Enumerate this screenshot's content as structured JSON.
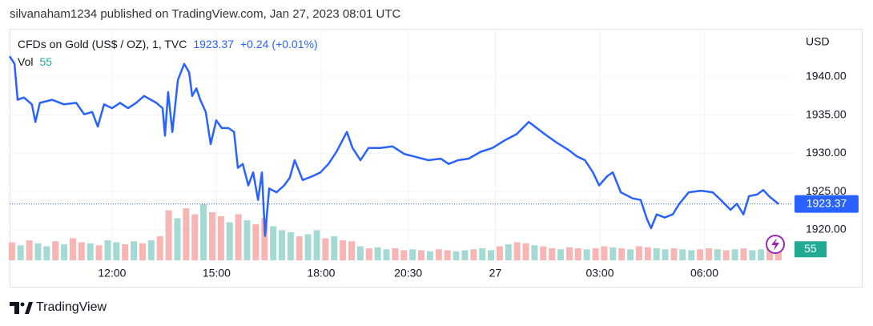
{
  "header": {
    "published": "silvanaham1234 published on TradingView.com, Jan 27, 2023 08:01 UTC"
  },
  "chart_data": {
    "type": "line",
    "symbol": "CFDs on Gold (US$ / OZ), 1, TVC",
    "last": 1923.37,
    "change": "+0.24",
    "change_pct": "(+0.01%)",
    "currency": "USD",
    "x": [
      9.06,
      9.2,
      9.29,
      9.47,
      9.7,
      9.8,
      9.93,
      10.28,
      10.62,
      10.97,
      11.2,
      11.43,
      11.59,
      11.77,
      12.0,
      12.23,
      12.46,
      12.69,
      12.92,
      13.27,
      13.45,
      13.52,
      13.61,
      13.73,
      13.89,
      14.07,
      14.21,
      14.3,
      14.42,
      14.53,
      14.69,
      14.83,
      14.99,
      15.15,
      15.34,
      15.5,
      15.61,
      15.75,
      15.91,
      16.05,
      16.19,
      16.3,
      16.39,
      16.51,
      16.72,
      16.94,
      17.1,
      17.24,
      17.47,
      17.75,
      17.98,
      18.21,
      18.44,
      18.74,
      18.9,
      19.13,
      19.36,
      19.7,
      20.05,
      20.39,
      20.74,
      21.08,
      21.43,
      21.66,
      21.93,
      22.23,
      22.58,
      22.92,
      23.27,
      23.61,
      23.96,
      24.19,
      24.42,
      24.76,
      25.11,
      25.34,
      25.57,
      25.8,
      25.98,
      26.21,
      26.37,
      26.6,
      26.94,
      27.17,
      27.36,
      27.47,
      27.63,
      27.86,
      28.09,
      28.28,
      28.55,
      28.9,
      29.24,
      29.47,
      29.75,
      29.93,
      30.12,
      30.28,
      30.51,
      30.69,
      30.85,
      31.04,
      31.13
    ],
    "series": [
      {
        "color": "#2962ff",
        "values": [
          1942.7,
          1941.7,
          1937.0,
          1937.3,
          1936.4,
          1934.1,
          1936.6,
          1937.0,
          1936.4,
          1936.6,
          1935.1,
          1935.4,
          1933.5,
          1936.4,
          1935.9,
          1936.6,
          1935.9,
          1936.6,
          1937.5,
          1936.6,
          1935.9,
          1932.3,
          1938.0,
          1932.8,
          1939.6,
          1941.7,
          1940.6,
          1937.5,
          1938.5,
          1937.0,
          1935.4,
          1931.2,
          1934.3,
          1933.3,
          1933.3,
          1932.8,
          1928.1,
          1928.6,
          1925.8,
          1927.5,
          1923.9,
          1927.5,
          1919.2,
          1925.4,
          1924.9,
          1925.8,
          1926.8,
          1929.1,
          1926.5,
          1927.0,
          1927.5,
          1928.6,
          1930.2,
          1932.8,
          1930.7,
          1929.1,
          1930.7,
          1930.7,
          1930.9,
          1929.9,
          1929.5,
          1929.1,
          1929.3,
          1928.6,
          1929.1,
          1929.3,
          1930.2,
          1930.7,
          1931.7,
          1932.5,
          1934.1,
          1933.3,
          1932.5,
          1931.4,
          1930.4,
          1929.6,
          1929.1,
          1927.5,
          1925.8,
          1927.0,
          1927.5,
          1924.9,
          1924.1,
          1923.9,
          1921.3,
          1920.2,
          1922.0,
          1921.6,
          1922.0,
          1923.4,
          1924.9,
          1925.1,
          1924.9,
          1923.9,
          1922.6,
          1923.4,
          1922.0,
          1924.4,
          1924.6,
          1925.2,
          1924.4,
          1923.7,
          1923.37
        ]
      }
    ],
    "xlim": [
      9.06,
      31.54
    ],
    "xticks": [
      {
        "value": 12,
        "label": "12:00"
      },
      {
        "value": 15,
        "label": "15:00"
      },
      {
        "value": 18,
        "label": "18:00"
      },
      {
        "value": 20.5,
        "label": "20:30"
      },
      {
        "value": 23,
        "label": "27"
      },
      {
        "value": 26,
        "label": "03:00"
      },
      {
        "value": 29,
        "label": "06:00"
      }
    ],
    "ylim": [
      1916.0,
      1946.28
    ],
    "yticks": [
      {
        "value": 1920,
        "label": "1920.00"
      },
      {
        "value": 1925,
        "label": "1925.00"
      },
      {
        "value": 1930,
        "label": "1930.00"
      },
      {
        "value": 1935,
        "label": "1935.00"
      },
      {
        "value": 1940,
        "label": "1940.00"
      }
    ],
    "grid": true,
    "volume": {
      "name": "Vol",
      "last": 55,
      "ylim": [
        0,
        400
      ],
      "x": [
        9.125,
        9.375,
        9.625,
        9.875,
        10.125,
        10.375,
        10.625,
        10.875,
        11.125,
        11.375,
        11.625,
        11.875,
        12.125,
        12.375,
        12.625,
        12.875,
        13.125,
        13.375,
        13.625,
        13.875,
        14.125,
        14.375,
        14.625,
        14.875,
        15.125,
        15.375,
        15.625,
        15.875,
        16.125,
        16.375,
        16.625,
        16.875,
        17.125,
        17.375,
        17.625,
        17.875,
        18.125,
        18.375,
        18.625,
        18.875,
        19.125,
        19.375,
        19.625,
        19.875,
        20.125,
        20.375,
        20.625,
        20.875,
        21.125,
        21.375,
        21.625,
        21.875,
        22.125,
        22.375,
        22.625,
        22.875,
        23.125,
        23.375,
        23.625,
        23.875,
        24.125,
        24.375,
        24.625,
        24.875,
        25.125,
        25.375,
        25.625,
        25.875,
        26.125,
        26.375,
        26.625,
        26.875,
        27.125,
        27.375,
        27.625,
        27.875,
        28.125,
        28.375,
        28.625,
        28.875,
        29.125,
        29.375,
        29.625,
        29.875,
        30.125,
        30.375,
        30.625,
        30.875,
        31.125
      ],
      "values": [
        90,
        75,
        100,
        85,
        70,
        95,
        80,
        110,
        90,
        85,
        75,
        100,
        90,
        80,
        95,
        85,
        100,
        120,
        250,
        210,
        260,
        230,
        280,
        240,
        220,
        190,
        230,
        200,
        180,
        210,
        170,
        150,
        140,
        120,
        130,
        150,
        110,
        120,
        100,
        95,
        70,
        60,
        65,
        55,
        60,
        50,
        55,
        50,
        45,
        55,
        50,
        45,
        50,
        55,
        60,
        50,
        70,
        80,
        90,
        85,
        75,
        70,
        60,
        55,
        65,
        60,
        55,
        60,
        70,
        65,
        60,
        55,
        70,
        65,
        60,
        55,
        60,
        55,
        50,
        55,
        60,
        55,
        50,
        55,
        60,
        50,
        55,
        60,
        55
      ],
      "colors": [
        "#f5a3a0",
        "#8fd1c9",
        "#f5a3a0",
        "#8fd1c9",
        "#8fd1c9",
        "#f5a3a0",
        "#8fd1c9",
        "#f5a3a0",
        "#f5a3a0",
        "#8fd1c9",
        "#f5a3a0",
        "#8fd1c9",
        "#8fd1c9",
        "#f5a3a0",
        "#8fd1c9",
        "#f5a3a0",
        "#8fd1c9",
        "#f5a3a0",
        "#f5a3a0",
        "#8fd1c9",
        "#f5a3a0",
        "#f5a3a0",
        "#8fd1c9",
        "#f5a3a0",
        "#f5a3a0",
        "#8fd1c9",
        "#f5a3a0",
        "#8fd1c9",
        "#f5a3a0",
        "#f5a3a0",
        "#8fd1c9",
        "#8fd1c9",
        "#8fd1c9",
        "#f5a3a0",
        "#8fd1c9",
        "#8fd1c9",
        "#f5a3a0",
        "#8fd1c9",
        "#f5a3a0",
        "#f5a3a0",
        "#8fd1c9",
        "#f5a3a0",
        "#8fd1c9",
        "#8fd1c9",
        "#f5a3a0",
        "#f5a3a0",
        "#8fd1c9",
        "#f5a3a0",
        "#8fd1c9",
        "#f5a3a0",
        "#f5a3a0",
        "#8fd1c9",
        "#8fd1c9",
        "#f5a3a0",
        "#8fd1c9",
        "#8fd1c9",
        "#f5a3a0",
        "#8fd1c9",
        "#f5a3a0",
        "#f5a3a0",
        "#8fd1c9",
        "#f5a3a0",
        "#f5a3a0",
        "#8fd1c9",
        "#f5a3a0",
        "#f5a3a0",
        "#8fd1c9",
        "#f5a3a0",
        "#f5a3a0",
        "#8fd1c9",
        "#f5a3a0",
        "#8fd1c9",
        "#f5a3a0",
        "#f5a3a0",
        "#8fd1c9",
        "#8fd1c9",
        "#f5a3a0",
        "#8fd1c9",
        "#8fd1c9",
        "#f5a3a0",
        "#f5a3a0",
        "#8fd1c9",
        "#f5a3a0",
        "#8fd1c9",
        "#f5a3a0",
        "#8fd1c9",
        "#8fd1c9",
        "#f5a3a0",
        "#f5a3a0"
      ],
      "label_color": "#22ab94"
    }
  },
  "footer": {
    "brand": "TradingView"
  }
}
